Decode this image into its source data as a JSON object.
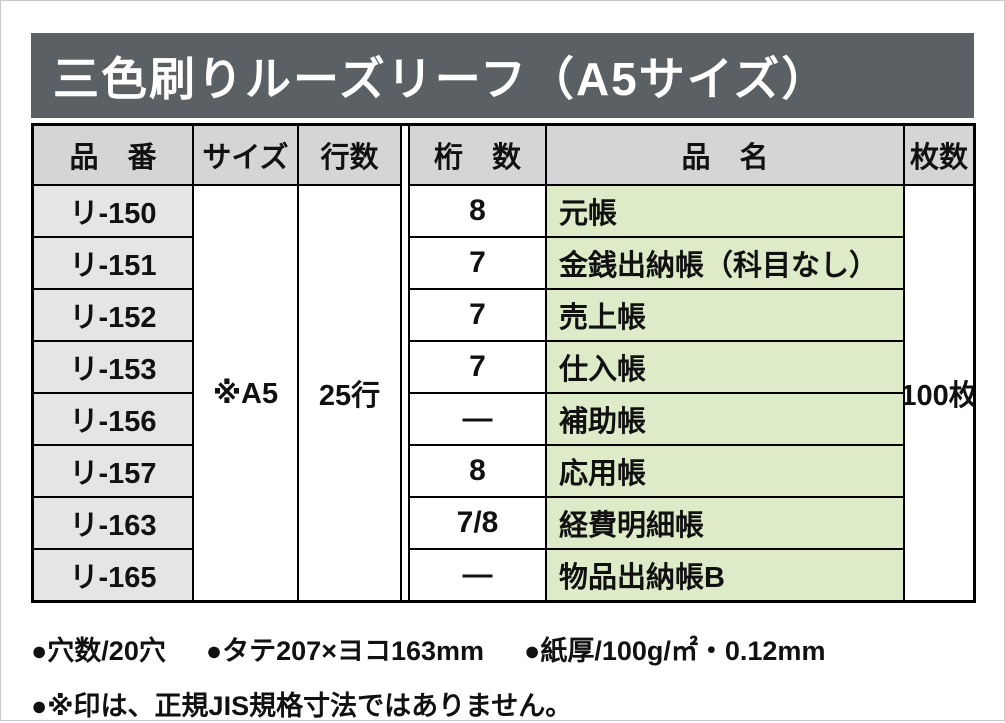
{
  "title": "三色刷りルーズリーフ（A5サイズ）",
  "table": {
    "headers": {
      "code": "品　番",
      "size": "サイズ",
      "lines": "行数",
      "digits": "桁　数",
      "name": "品　名",
      "sheets": "枚数"
    },
    "merged": {
      "size": "※A5",
      "lines": "25行",
      "sheets": "100枚"
    },
    "rows": [
      {
        "code": "リ-150",
        "digits": "8",
        "name": "元帳"
      },
      {
        "code": "リ-151",
        "digits": "7",
        "name": "金銭出納帳（科目なし）"
      },
      {
        "code": "リ-152",
        "digits": "7",
        "name": "売上帳"
      },
      {
        "code": "リ-153",
        "digits": "7",
        "name": "仕入帳"
      },
      {
        "code": "リ-156",
        "digits": "―",
        "name": "補助帳"
      },
      {
        "code": "リ-157",
        "digits": "8",
        "name": "応用帳"
      },
      {
        "code": "リ-163",
        "digits": "7/8",
        "name": "経費明細帳"
      },
      {
        "code": "リ-165",
        "digits": "―",
        "name": "物品出納帳B"
      }
    ]
  },
  "footer": {
    "specs": [
      "●穴数/20穴",
      "●タテ207×ヨコ163mm",
      "●紙厚/100g/㎡・0.12mm"
    ],
    "note": "●※印は、正規JIS規格寸法ではありません。"
  },
  "colors": {
    "title_bar_bg": "#5a6064",
    "header_bg": "#d4d5d7",
    "code_bg": "#e4e5e7",
    "name_bg": "#ddebc9"
  }
}
